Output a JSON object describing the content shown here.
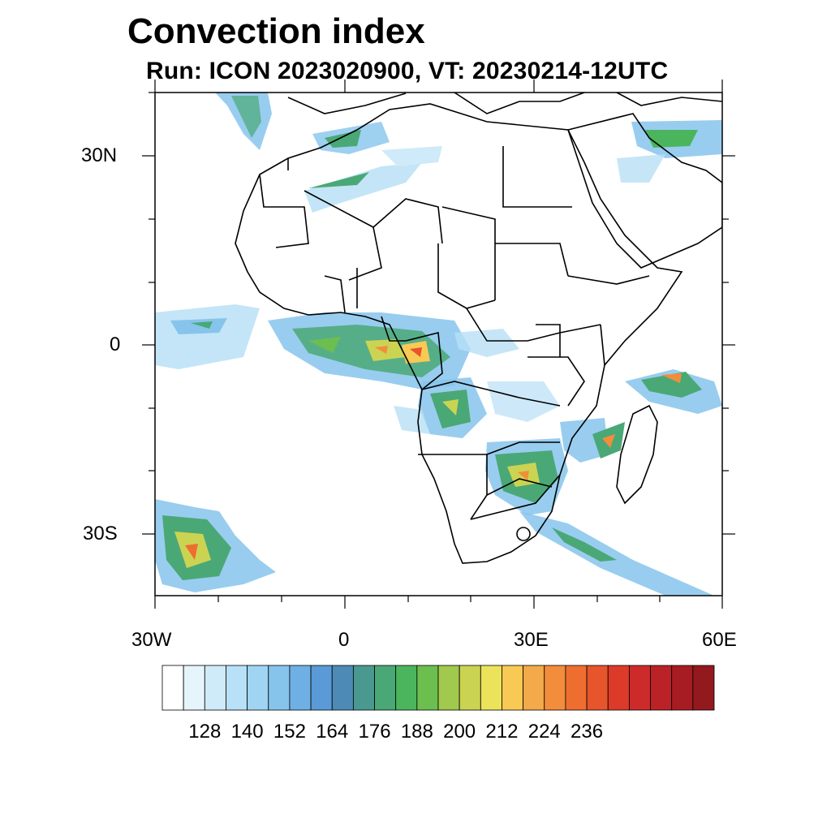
{
  "title": "Convection index",
  "subtitle": "Run: ICON 2023020900,  VT: 20230214-12UTC",
  "lat_labels": [
    "30N",
    "0",
    "30S"
  ],
  "lon_labels": [
    "30W",
    "0",
    "30E",
    "60E"
  ],
  "colorbar": {
    "labels": [
      "128",
      "140",
      "152",
      "164",
      "176",
      "188",
      "200",
      "212",
      "224",
      "236"
    ],
    "colors": [
      "#ffffff",
      "#e6f4fb",
      "#cfeaf8",
      "#b8e0f6",
      "#9fd5f3",
      "#86c4ec",
      "#6eb0e3",
      "#5a9ad6",
      "#4d8ab6",
      "#4a9990",
      "#4aa876",
      "#4bb55e",
      "#6cbf4e",
      "#a0c94e",
      "#cbd452",
      "#ede35a",
      "#f8c954",
      "#f4a94a",
      "#f28d3c",
      "#ee6e30",
      "#e6552b",
      "#dc3b2a",
      "#cd2a2a",
      "#bb2228",
      "#a71c22",
      "#92191e"
    ]
  },
  "map": {
    "lon_range": [
      -30,
      60
    ],
    "lat_range": [
      -40,
      40
    ],
    "field": "Convection index"
  }
}
